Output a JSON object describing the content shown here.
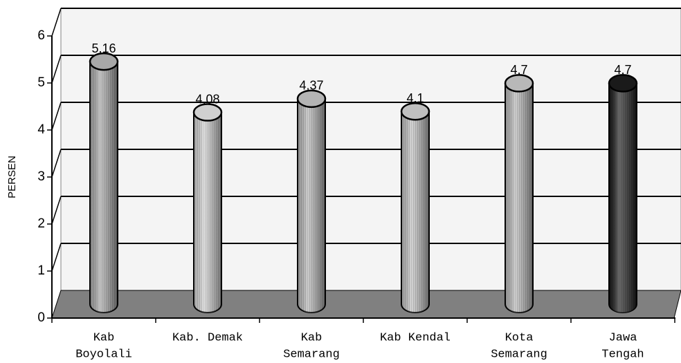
{
  "chart_data": {
    "type": "bar",
    "y_label": "PERSEN",
    "categories": [
      [
        "Kab",
        "Boyolali"
      ],
      [
        "Kab. Demak"
      ],
      [
        "Kab",
        "Semarang"
      ],
      [
        "Kab Kendal"
      ],
      [
        "Kota",
        "Semarang"
      ],
      [
        "Jawa",
        "Tengah"
      ]
    ],
    "values": [
      5.16,
      4.08,
      4.37,
      4.1,
      4.7,
      4.7
    ],
    "value_labels": [
      "5,16",
      "4,08",
      "4,37",
      "4,1",
      "4,7",
      "4,7"
    ],
    "colors": [
      "#a8a8a8",
      "#d0d0d0",
      "#b4b4b4",
      "#c0c0c0",
      "#b8b8b8",
      "#1a1a1a"
    ],
    "ylim": [
      0,
      6
    ],
    "yticks": [
      0,
      1,
      2,
      3,
      4,
      5,
      6
    ],
    "grid": true
  }
}
